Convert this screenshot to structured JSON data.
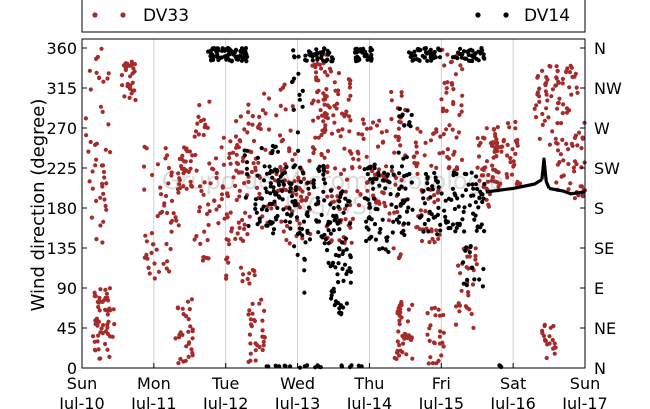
{
  "chart_data": {
    "type": "scatter",
    "title": "",
    "xlabel": "",
    "ylabel": "Wind direction (degree)",
    "ylim": [
      0,
      360
    ],
    "yticks": [
      0,
      45,
      90,
      135,
      180,
      225,
      270,
      315,
      360
    ],
    "right_ticks": [
      "N",
      "NE",
      "E",
      "SE",
      "S",
      "SW",
      "W",
      "NW",
      "N"
    ],
    "xlim": [
      "2011-07-10",
      "2011-07-17"
    ],
    "x_ticks": [
      {
        "day": "Sun",
        "date": "Jul-10"
      },
      {
        "day": "Mon",
        "date": "Jul-11"
      },
      {
        "day": "Tue",
        "date": "Jul-12"
      },
      {
        "day": "Wed",
        "date": "Jul-13"
      },
      {
        "day": "Thu",
        "date": "Jul-14"
      },
      {
        "day": "Fri",
        "date": "Jul-15"
      },
      {
        "day": "Sat",
        "date": "Jul-16"
      },
      {
        "day": "Sun",
        "date": "Jul-17"
      }
    ],
    "grid": "vertical",
    "legend_position": "top",
    "watermark": [
      "Grupo de Micrometeorologia",
      "IAG/USP"
    ],
    "series": [
      {
        "name": "DV33",
        "color": "#a52a2a",
        "x_unit": "days from Sun Jul-10 00:00",
        "clusters": [
          [
            0.05,
            0.4,
            140,
            360,
            45
          ],
          [
            0.15,
            0.45,
            10,
            90,
            55
          ],
          [
            0.55,
            0.75,
            300,
            345,
            30
          ],
          [
            0.85,
            1.35,
            100,
            250,
            55
          ],
          [
            1.35,
            1.55,
            200,
            250,
            30
          ],
          [
            1.3,
            1.55,
            5,
            80,
            30
          ],
          [
            1.55,
            1.8,
            120,
            300,
            35
          ],
          [
            1.75,
            2.2,
            150,
            260,
            40
          ],
          [
            2.1,
            2.5,
            190,
            300,
            45
          ],
          [
            2.0,
            2.45,
            95,
            180,
            30
          ],
          [
            2.3,
            2.55,
            5,
            80,
            30
          ],
          [
            2.5,
            2.95,
            150,
            330,
            40
          ],
          [
            2.8,
            3.2,
            140,
            250,
            45
          ],
          [
            3.2,
            3.4,
            230,
            360,
            40
          ],
          [
            3.35,
            3.75,
            260,
            340,
            45
          ],
          [
            3.4,
            3.8,
            140,
            250,
            45
          ],
          [
            3.8,
            4.2,
            180,
            280,
            45
          ],
          [
            4.2,
            4.5,
            120,
            330,
            45
          ],
          [
            4.35,
            4.6,
            10,
            80,
            40
          ],
          [
            4.6,
            5.0,
            140,
            270,
            50
          ],
          [
            4.8,
            5.05,
            5,
            70,
            25
          ],
          [
            5.0,
            5.3,
            220,
            360,
            45
          ],
          [
            5.2,
            5.5,
            40,
            140,
            30
          ],
          [
            5.5,
            5.8,
            180,
            270,
            40
          ],
          [
            5.7,
            6.1,
            200,
            280,
            50
          ],
          [
            6.3,
            6.7,
            250,
            340,
            45
          ],
          [
            6.6,
            6.9,
            200,
            340,
            45
          ],
          [
            6.4,
            6.6,
            10,
            50,
            20
          ],
          [
            6.85,
            7.0,
            190,
            280,
            20
          ]
        ]
      },
      {
        "name": "DV14",
        "color": "#000000",
        "x_unit": "days from Sun Jul-10 00:00",
        "clusters": [
          [
            1.75,
            2.3,
            345,
            360,
            80
          ],
          [
            2.25,
            2.75,
            150,
            260,
            55
          ],
          [
            2.6,
            3.4,
            140,
            230,
            90
          ],
          [
            2.9,
            3.1,
            80,
            360,
            25
          ],
          [
            3.1,
            3.5,
            345,
            360,
            40
          ],
          [
            3.4,
            3.75,
            60,
            200,
            75
          ],
          [
            3.8,
            4.05,
            345,
            360,
            35
          ],
          [
            3.9,
            4.5,
            130,
            230,
            70
          ],
          [
            4.4,
            4.6,
            150,
            300,
            30
          ],
          [
            4.55,
            5.0,
            345,
            360,
            45
          ],
          [
            4.7,
            5.6,
            150,
            220,
            95
          ],
          [
            5.15,
            5.6,
            345,
            360,
            40
          ],
          [
            2.5,
            4.0,
            0,
            3,
            20
          ],
          [
            5.3,
            5.6,
            90,
            140,
            15
          ],
          [
            5.8,
            5.9,
            0,
            3,
            3
          ]
        ],
        "line_segments": [
          {
            "x": [
              5.62,
              6.0,
              6.3,
              6.4
            ],
            "y": [
              198,
              202,
              207,
              212
            ]
          },
          {
            "x": [
              6.4,
              6.43,
              6.46,
              6.5
            ],
            "y": [
              212,
              235,
              210,
              202
            ]
          },
          {
            "x": [
              6.5,
              6.7,
              6.8,
              7.0
            ],
            "y": [
              202,
              199,
              196,
              198
            ]
          }
        ]
      }
    ]
  }
}
